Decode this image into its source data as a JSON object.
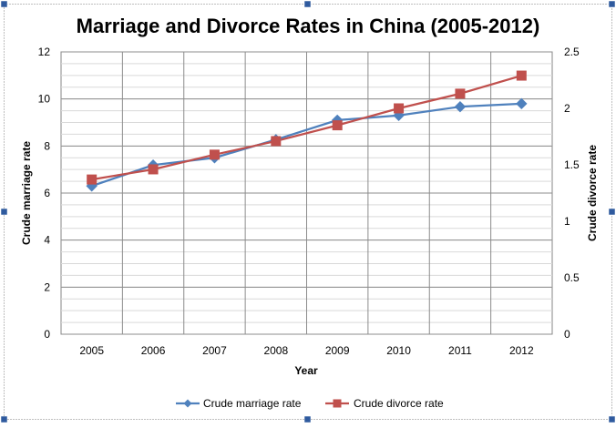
{
  "chart_data": {
    "type": "line",
    "title": "Marriage and Divorce Rates in China (2005-2012)",
    "xlabel": "Year",
    "ylabel_left": "Crude marriage rate",
    "ylabel_right": "Crude divorce rate",
    "categories": [
      "2005",
      "2006",
      "2007",
      "2008",
      "2009",
      "2010",
      "2011",
      "2012"
    ],
    "left_axis": {
      "min": 0,
      "max": 12,
      "major": 2,
      "minor": 0.5,
      "ticks": [
        "0",
        "2",
        "4",
        "6",
        "8",
        "10",
        "12"
      ]
    },
    "right_axis": {
      "min": 0,
      "max": 2.5,
      "major": 0.5,
      "ticks": [
        "0",
        "0.5",
        "1",
        "1.5",
        "2",
        "2.5"
      ]
    },
    "grid": true,
    "legend_position": "bottom",
    "series": [
      {
        "name": "Crude marriage rate",
        "axis": "left",
        "color": "#4F81BD",
        "marker": "diamond",
        "values": [
          6.3,
          7.19,
          7.5,
          8.27,
          9.1,
          9.3,
          9.67,
          9.8
        ]
      },
      {
        "name": "Crude divorce rate",
        "axis": "right",
        "color": "#C0504D",
        "marker": "square",
        "values": [
          1.37,
          1.46,
          1.59,
          1.71,
          1.85,
          2.0,
          2.13,
          2.29
        ]
      }
    ]
  }
}
